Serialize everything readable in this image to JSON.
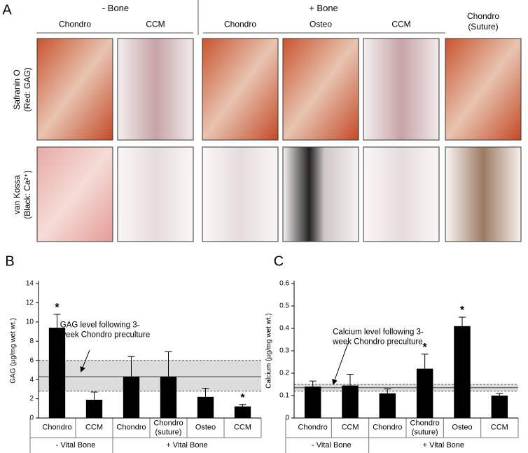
{
  "figure": {
    "panel_labels": [
      "A",
      "B",
      "C"
    ],
    "header": {
      "groups": [
        "- Bone",
        "+ Bone"
      ],
      "columns": [
        "Chondro",
        "CCM",
        "Chondro",
        "Osteo",
        "CCM",
        "Chondro\n(Suture)"
      ]
    },
    "rows": [
      "Safranin O\n(Red: GAG)",
      "van Kossa\n(Black: Ca²⁺)"
    ]
  },
  "chart_data": [
    {
      "type": "bar",
      "y_label": "GAG (µg/mg wet wt.)",
      "categories": [
        "Chondro",
        "CCM",
        "Chondro",
        "Chondro\n(suture)",
        "Osteo",
        "CCM"
      ],
      "group_labels": [
        "- Vital Bone",
        "+ Vital Bone"
      ],
      "values": [
        9.4,
        1.9,
        4.3,
        4.3,
        2.2,
        1.2
      ],
      "errors": [
        1.4,
        0.8,
        2.1,
        2.6,
        0.9,
        0.2
      ],
      "significance": [
        "*",
        null,
        null,
        null,
        null,
        "*"
      ],
      "color": "#000000",
      "reference_band": {
        "low": 2.8,
        "high": 6.0,
        "mean": 4.3,
        "label": "GAG level following 3-\nweek Chondro preculture"
      },
      "ylim": [
        0,
        14
      ],
      "yticks": [
        0,
        2,
        4,
        6,
        8,
        10,
        12,
        14
      ]
    },
    {
      "type": "bar",
      "y_label": "Calcium (µg/mg wet wt.)",
      "categories": [
        "Chondro",
        "CCM",
        "Chondro",
        "Chondro\n(suture)",
        "Osteo",
        "CCM"
      ],
      "group_labels": [
        "- Vital Bone",
        "+ Vital Bone"
      ],
      "values": [
        0.14,
        0.145,
        0.11,
        0.22,
        0.41,
        0.1
      ],
      "errors": [
        0.025,
        0.05,
        0.02,
        0.065,
        0.04,
        0.01
      ],
      "significance": [
        null,
        null,
        null,
        "*",
        "*",
        null
      ],
      "color": "#000000",
      "reference_band": {
        "low": 0.12,
        "high": 0.15,
        "mean": 0.135,
        "label": "Calcium level following 3-\nweek Chondro preculture"
      },
      "ylim": [
        0,
        0.6
      ],
      "yticks": [
        0,
        0.1,
        0.2,
        0.3,
        0.4,
        0.5,
        0.6
      ]
    }
  ]
}
